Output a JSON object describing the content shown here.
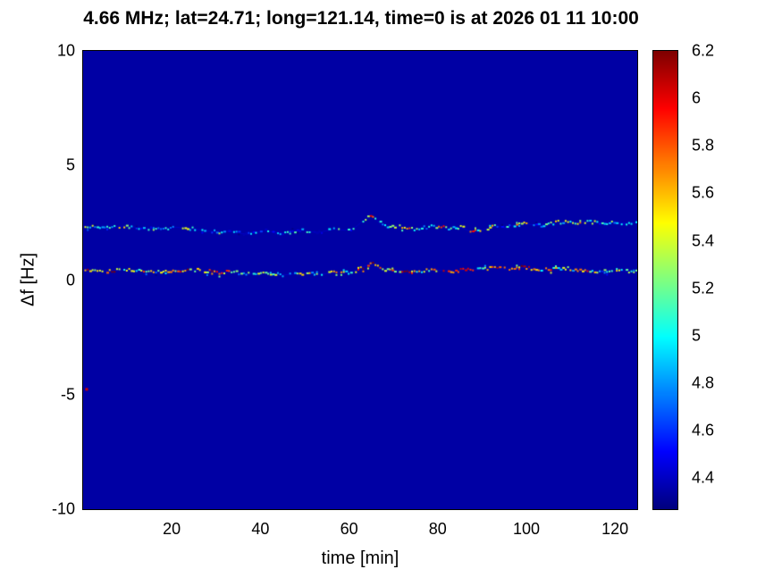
{
  "chart_data": {
    "type": "heatmap",
    "title": "4.66 MHz;  lat=24.71; long=121.14, time=0 is at 2026 01 11 10:00",
    "xlabel": "time [min]",
    "ylabel": "Δf [Hz]",
    "xlim": [
      0,
      125
    ],
    "ylim": [
      -10,
      10
    ],
    "x_ticks": [
      20,
      40,
      60,
      80,
      100,
      120
    ],
    "y_ticks": [
      10,
      5,
      0,
      -5,
      -10
    ],
    "clim": [
      4.27,
      6.2
    ],
    "background_value": 4.34,
    "colormap": "jet",
    "legend_position": "colorbar-right",
    "grid": false,
    "colorbar": {
      "tick_values": [
        4.4,
        4.6,
        4.8,
        5,
        5.2,
        5.4,
        5.6,
        5.8,
        6,
        6.2
      ],
      "tick_labels": [
        "4.4",
        "4.6",
        "4.8",
        "5",
        "5.2",
        "5.4",
        "5.6",
        "5.8",
        "6",
        "6.2"
      ]
    },
    "traces": [
      {
        "name": "doppler-trace-near-zero",
        "density": 0.93,
        "x": [
          1,
          3,
          5,
          7,
          9,
          11,
          13,
          15,
          17,
          19,
          21,
          23,
          25,
          27,
          29,
          31,
          33,
          35,
          37,
          39,
          41,
          43,
          45,
          47,
          49,
          51,
          53,
          55,
          57,
          59,
          61,
          63,
          65,
          67,
          69,
          71,
          73,
          75,
          77,
          79,
          81,
          83,
          85,
          87,
          89,
          91,
          93,
          95,
          97,
          99,
          101,
          103,
          105,
          107,
          109,
          111,
          113,
          115,
          117,
          119,
          121,
          123,
          125
        ],
        "y": [
          0.42,
          0.4,
          0.38,
          0.42,
          0.45,
          0.43,
          0.4,
          0.38,
          0.36,
          0.38,
          0.42,
          0.45,
          0.44,
          0.4,
          0.36,
          0.33,
          0.38,
          0.3,
          0.25,
          0.28,
          0.32,
          0.28,
          0.22,
          0.25,
          0.3,
          0.28,
          0.24,
          0.28,
          0.35,
          0.32,
          0.38,
          0.55,
          0.75,
          0.5,
          0.4,
          0.42,
          0.38,
          0.35,
          0.4,
          0.45,
          0.42,
          0.38,
          0.42,
          0.48,
          0.45,
          0.5,
          0.52,
          0.48,
          0.5,
          0.55,
          0.5,
          0.45,
          0.48,
          0.52,
          0.5,
          0.46,
          0.42,
          0.4,
          0.38,
          0.42,
          0.4,
          0.38,
          0.4
        ],
        "intensity": [
          5.8,
          5.5,
          6.0,
          5.9,
          5.4,
          5.2,
          5.6,
          5.3,
          5.0,
          5.4,
          5.7,
          5.9,
          5.5,
          5.2,
          5.8,
          6.0,
          5.4,
          5.1,
          4.9,
          5.2,
          5.5,
          5.0,
          4.8,
          5.1,
          5.4,
          5.2,
          4.9,
          5.3,
          5.6,
          5.2,
          5.5,
          5.9,
          6.1,
          5.6,
          5.3,
          5.7,
          6.0,
          5.5,
          5.2,
          5.6,
          5.9,
          5.4,
          6.0,
          5.7,
          5.3,
          5.8,
          6.1,
          5.6,
          5.9,
          6.0,
          5.5,
          5.2,
          5.6,
          5.3,
          5.0,
          5.4,
          5.7,
          5.3,
          5.0,
          5.4,
          5.2,
          4.9,
          5.1
        ]
      },
      {
        "name": "doppler-trace-upper",
        "density": 0.8,
        "x": [
          1,
          3,
          5,
          7,
          9,
          11,
          13,
          15,
          17,
          19,
          21,
          23,
          25,
          27,
          29,
          31,
          33,
          35,
          37,
          39,
          41,
          43,
          45,
          47,
          49,
          51,
          53,
          55,
          57,
          59,
          61,
          63,
          65,
          67,
          69,
          71,
          73,
          75,
          77,
          79,
          81,
          83,
          85,
          87,
          89,
          91,
          93,
          95,
          97,
          99,
          101,
          103,
          105,
          107,
          109,
          111,
          113,
          115,
          117,
          119,
          121,
          123,
          125
        ],
        "y": [
          2.32,
          2.3,
          2.28,
          2.3,
          2.35,
          2.32,
          2.28,
          2.25,
          2.22,
          2.25,
          2.3,
          2.28,
          2.22,
          2.18,
          2.12,
          2.08,
          2.15,
          2.05,
          2.0,
          2.08,
          2.15,
          2.1,
          2.05,
          2.1,
          2.18,
          2.12,
          2.08,
          2.15,
          2.22,
          2.18,
          2.25,
          2.55,
          2.85,
          2.45,
          2.3,
          2.35,
          2.28,
          2.22,
          2.3,
          2.35,
          2.3,
          2.25,
          2.32,
          2.15,
          2.1,
          2.25,
          2.35,
          2.3,
          2.38,
          2.45,
          2.42,
          2.38,
          2.45,
          2.52,
          2.55,
          2.5,
          2.55,
          2.52,
          2.48,
          2.52,
          2.5,
          2.48,
          2.5
        ],
        "intensity": [
          5.2,
          4.9,
          4.7,
          5.0,
          5.3,
          4.8,
          4.6,
          4.9,
          5.1,
          4.7,
          5.0,
          5.4,
          4.9,
          4.6,
          4.8,
          5.1,
          4.7,
          4.5,
          4.8,
          5.0,
          4.7,
          4.5,
          4.7,
          4.9,
          4.6,
          4.8,
          4.5,
          4.7,
          5.0,
          4.7,
          5.1,
          5.4,
          5.7,
          5.2,
          4.8,
          5.5,
          5.8,
          5.2,
          4.9,
          5.3,
          5.6,
          5.0,
          5.4,
          5.8,
          5.2,
          5.5,
          5.0,
          4.8,
          5.2,
          5.6,
          5.1,
          4.8,
          5.2,
          5.5,
          5.0,
          5.3,
          5.6,
          5.1,
          4.8,
          5.1,
          4.9,
          4.7,
          4.9
        ]
      }
    ],
    "specks": [
      {
        "x": 0.5,
        "y": -4.75,
        "value": 6.05
      }
    ]
  }
}
